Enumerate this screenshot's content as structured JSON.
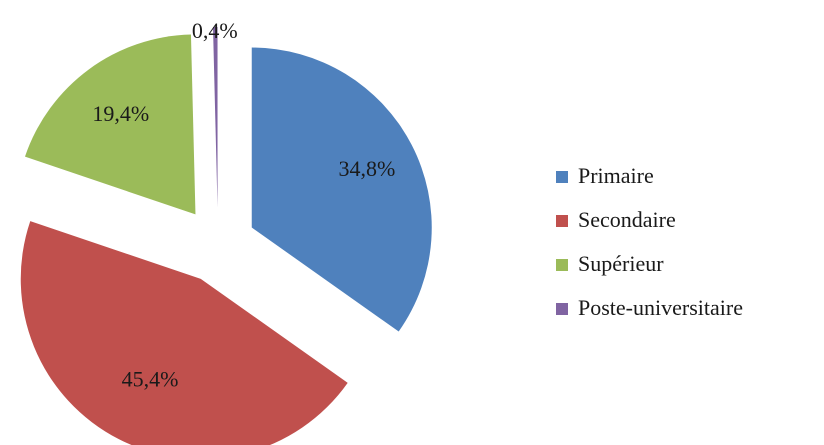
{
  "chart_data": {
    "type": "pie",
    "title": "",
    "exploded": true,
    "legend_position": "right",
    "slices": [
      {
        "name": "Primaire",
        "value": 34.8,
        "label": "34,8%",
        "color": "#4f81bd"
      },
      {
        "name": "Secondaire",
        "value": 45.4,
        "label": "45,4%",
        "color": "#c0504d"
      },
      {
        "name": "Supérieur",
        "value": 19.4,
        "label": "19,4%",
        "color": "#9bbb59"
      },
      {
        "name": "Poste-universitaire",
        "value": 0.4,
        "label": "0,4%",
        "color": "#8064a2"
      }
    ]
  }
}
